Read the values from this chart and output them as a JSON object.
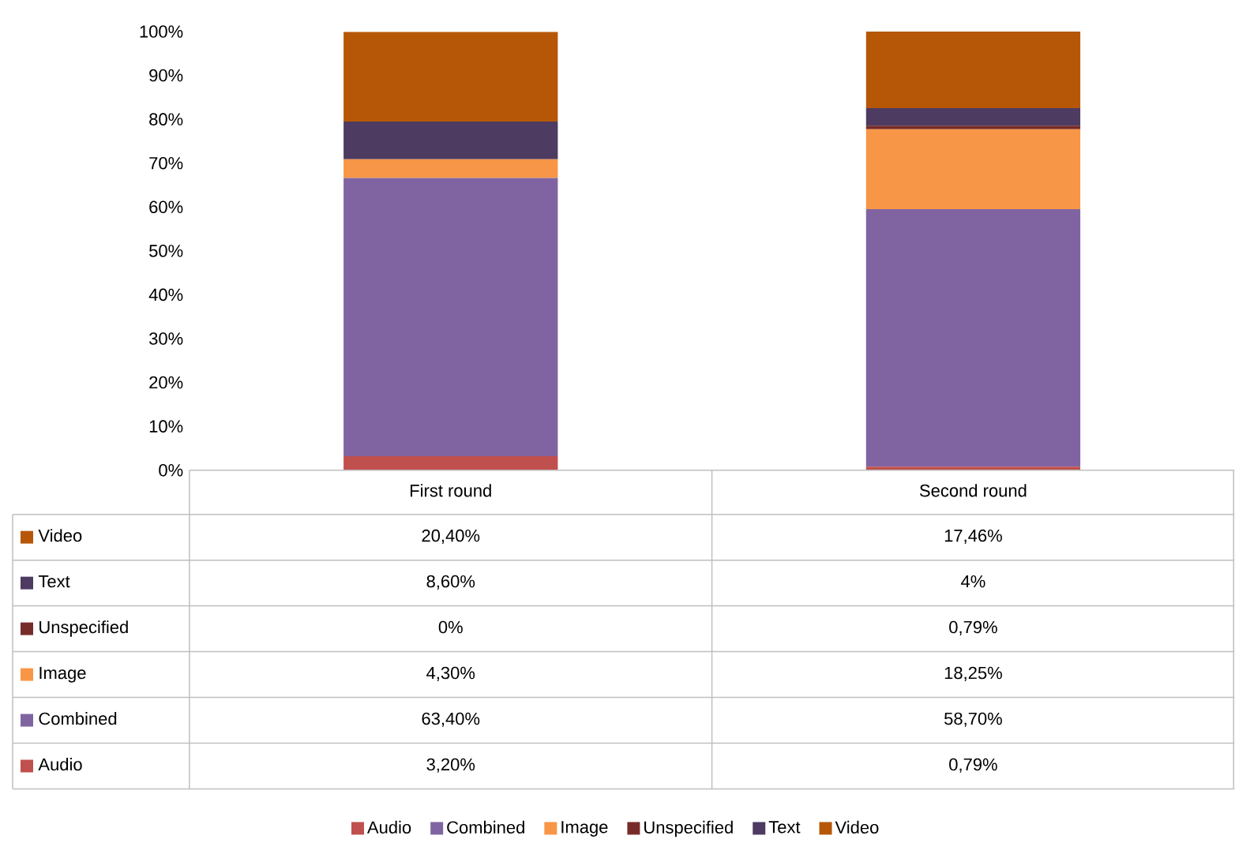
{
  "chart_data": {
    "type": "bar",
    "stacked": true,
    "categories": [
      "First round",
      "Second round"
    ],
    "ylim": [
      0,
      100
    ],
    "yticks": [
      {
        "value": 0,
        "label": "0%"
      },
      {
        "value": 10,
        "label": "10%"
      },
      {
        "value": 20,
        "label": "20%"
      },
      {
        "value": 30,
        "label": "30%"
      },
      {
        "value": 40,
        "label": "40%"
      },
      {
        "value": 50,
        "label": "50%"
      },
      {
        "value": 60,
        "label": "60%"
      },
      {
        "value": 70,
        "label": "70%"
      },
      {
        "value": 80,
        "label": "80%"
      },
      {
        "value": 90,
        "label": "90%"
      },
      {
        "value": 100,
        "label": "100%"
      }
    ],
    "series": [
      {
        "name": "Audio",
        "color": "#c0504d",
        "values": [
          3.2,
          0.79
        ],
        "value_labels": [
          "3,20%",
          "0,79%"
        ]
      },
      {
        "name": "Combined",
        "color": "#8064a2",
        "values": [
          63.4,
          58.7
        ],
        "value_labels": [
          "63,40%",
          "58,70%"
        ]
      },
      {
        "name": "Image",
        "color": "#f79646",
        "values": [
          4.3,
          18.25
        ],
        "value_labels": [
          "4,30%",
          "18,25%"
        ]
      },
      {
        "name": "Unspecified",
        "color": "#772c2a",
        "values": [
          0,
          0.79
        ],
        "value_labels": [
          "0%",
          "0,79%"
        ]
      },
      {
        "name": "Text",
        "color": "#4d3b62",
        "values": [
          8.6,
          4
        ],
        "value_labels": [
          "8,60%",
          "4%"
        ]
      },
      {
        "name": "Video",
        "color": "#b65708",
        "values": [
          20.4,
          17.46
        ],
        "value_labels": [
          "20,40%",
          "17,46%"
        ]
      }
    ],
    "legend": "bottom"
  }
}
